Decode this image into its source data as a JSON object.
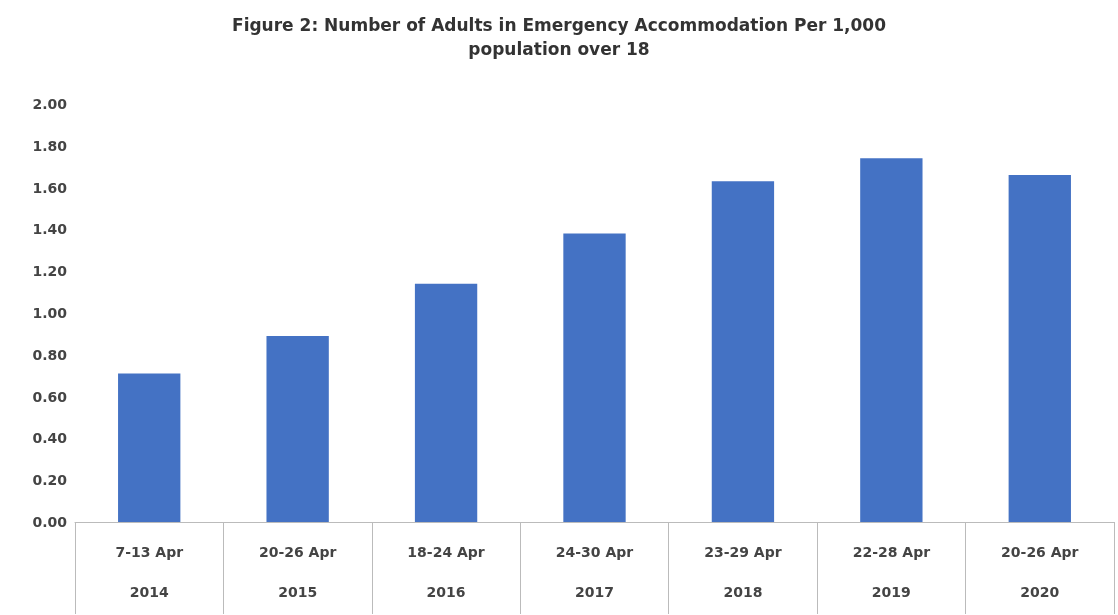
{
  "chart_data": {
    "type": "bar",
    "title": "Figure 2: Number of Adults in Emergency Accommodation Per 1,000\npopulation over 18",
    "categories": [
      "7-13 Apr\n2014",
      "20-26 Apr\n2015",
      "18-24 Apr\n2016",
      "24-30 Apr\n2017",
      "23-29 Apr\n2018",
      "22-28 Apr\n2019",
      "20-26 Apr\n2020"
    ],
    "values": [
      0.71,
      0.89,
      1.14,
      1.38,
      1.63,
      1.74,
      1.66
    ],
    "color": "#4472c4",
    "ylim": [
      0,
      2
    ],
    "yticks": [
      {
        "value": 0,
        "label": "0.00"
      },
      {
        "value": 0.2,
        "label": "0.20"
      },
      {
        "value": 0.4,
        "label": "0.40"
      },
      {
        "value": 0.6,
        "label": "0.60"
      },
      {
        "value": 0.8,
        "label": "0.80"
      },
      {
        "value": 1,
        "label": "1.00"
      },
      {
        "value": 1.2,
        "label": "1.20"
      },
      {
        "value": 1.4,
        "label": "1.40"
      },
      {
        "value": 1.6,
        "label": "1.60"
      },
      {
        "value": 1.8,
        "label": "1.80"
      },
      {
        "value": 2,
        "label": "2.00"
      }
    ],
    "grid": false
  }
}
